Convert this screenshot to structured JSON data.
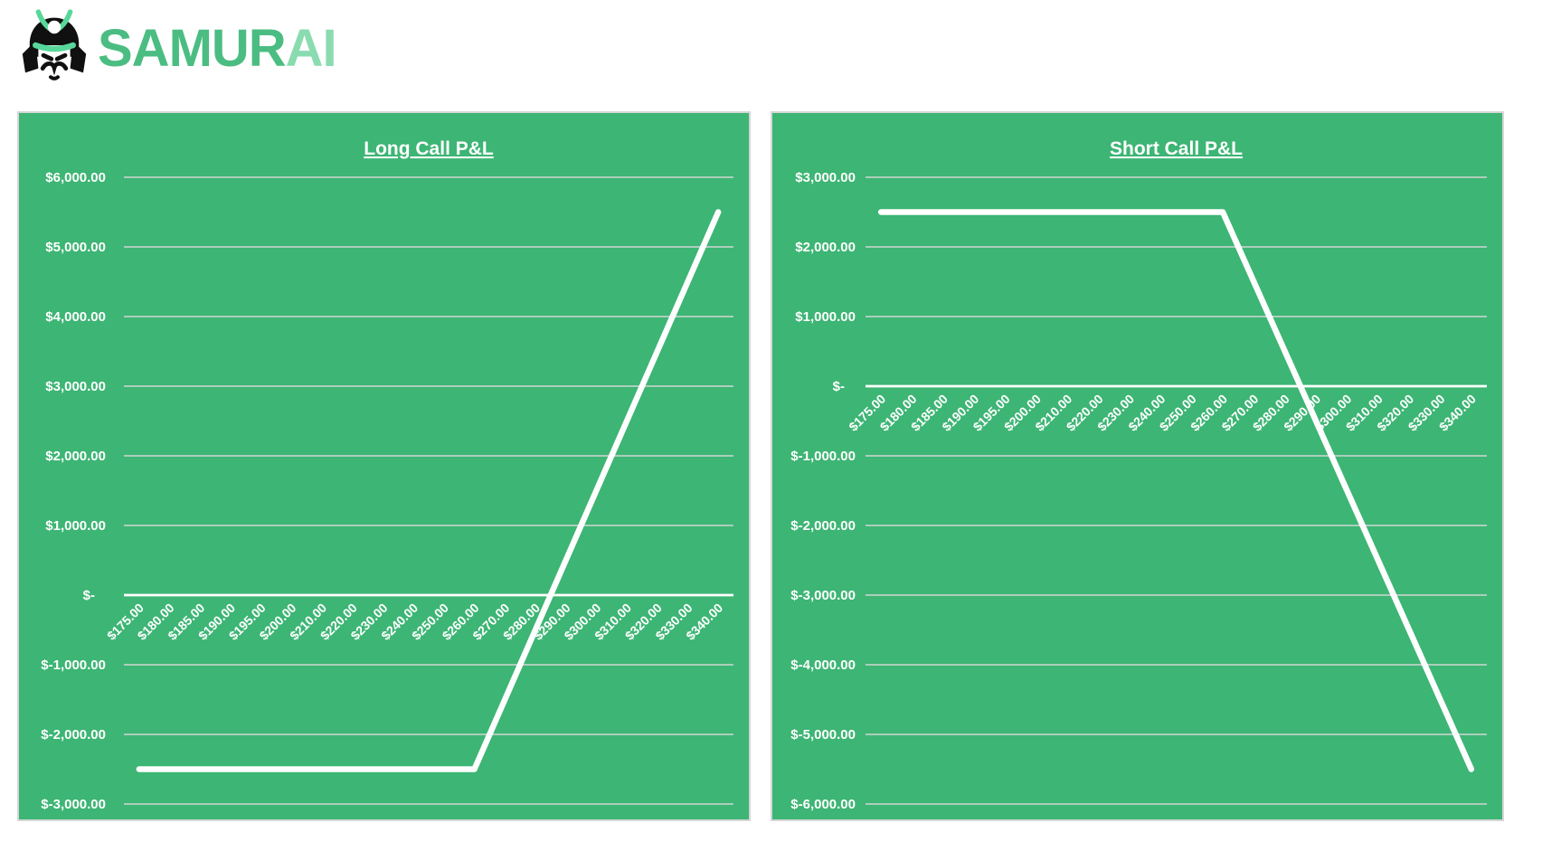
{
  "logo": {
    "brand_primary": "SAMUR",
    "brand_secondary": "AI",
    "icon": "samurai-helmet-icon"
  },
  "colors": {
    "page_bg": "#ffffff",
    "panel_bg": "#3db574",
    "panel_border": "#d6d6d6",
    "gridline": "#d9d9d9",
    "zero_line": "#ffffff",
    "series_line": "#ffffff",
    "text": "#ffffff",
    "logo_primary": "#4bbd82",
    "logo_secondary": "#8adcb0",
    "helmet_black": "#101010",
    "helmet_green": "#57d89a"
  },
  "chart_data": [
    {
      "type": "line",
      "title": "Long Call P&L",
      "categories": [
        "$175.00",
        "$180.00",
        "$185.00",
        "$190.00",
        "$195.00",
        "$200.00",
        "$210.00",
        "$220.00",
        "$230.00",
        "$240.00",
        "$250.00",
        "$260.00",
        "$270.00",
        "$280.00",
        "$290.00",
        "$300.00",
        "$310.00",
        "$320.00",
        "$330.00",
        "$340.00"
      ],
      "series": [
        {
          "name": "Long Call P&L",
          "values": [
            -2500,
            -2500,
            -2500,
            -2500,
            -2500,
            -2500,
            -2500,
            -2500,
            -2500,
            -2500,
            -2500,
            -2500,
            -1500,
            -500,
            500,
            1500,
            2500,
            3500,
            4500,
            5500
          ]
        }
      ],
      "ylim": [
        -3000,
        6000
      ],
      "ytick_step": 1000,
      "y_tick_labels": [
        "$6,000.00",
        "$5,000.00",
        "$4,000.00",
        "$3,000.00",
        "$2,000.00",
        "$1,000.00",
        "$-",
        "$-1,000.00",
        "$-2,000.00",
        "$-3,000.00"
      ],
      "grid": true,
      "legend": "none",
      "x_labels_rotation_deg": 45,
      "x_labels_position": "below zero axis"
    },
    {
      "type": "line",
      "title": "Short Call P&L",
      "categories": [
        "$175.00",
        "$180.00",
        "$185.00",
        "$190.00",
        "$195.00",
        "$200.00",
        "$210.00",
        "$220.00",
        "$230.00",
        "$240.00",
        "$250.00",
        "$260.00",
        "$270.00",
        "$280.00",
        "$290.00",
        "$300.00",
        "$310.00",
        "$320.00",
        "$330.00",
        "$340.00"
      ],
      "series": [
        {
          "name": "Short Call P&L",
          "values": [
            2500,
            2500,
            2500,
            2500,
            2500,
            2500,
            2500,
            2500,
            2500,
            2500,
            2500,
            2500,
            1500,
            500,
            -500,
            -1500,
            -2500,
            -3500,
            -4500,
            -5500
          ]
        }
      ],
      "ylim": [
        -6000,
        3000
      ],
      "ytick_step": 1000,
      "y_tick_labels": [
        "$3,000.00",
        "$2,000.00",
        "$1,000.00",
        "$-",
        "$-1,000.00",
        "$-2,000.00",
        "$-3,000.00",
        "$-4,000.00",
        "$-5,000.00",
        "$-6,000.00"
      ],
      "grid": true,
      "legend": "none",
      "x_labels_rotation_deg": 45,
      "x_labels_position": "below zero axis"
    }
  ]
}
